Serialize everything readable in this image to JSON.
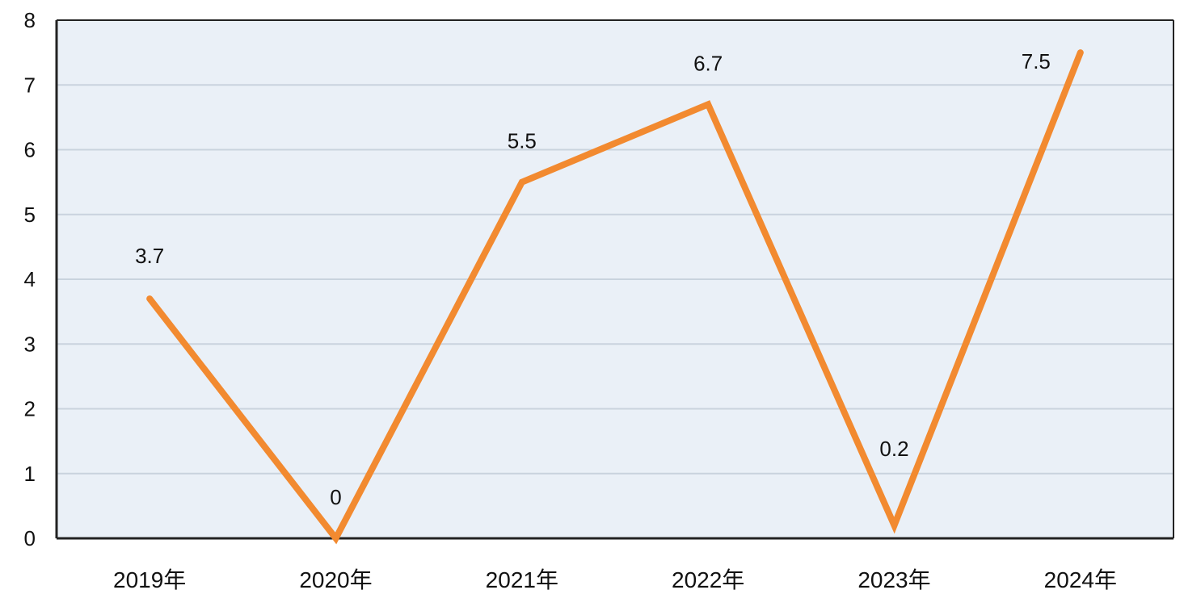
{
  "chart_data": {
    "type": "line",
    "categories": [
      "2019年",
      "2020年",
      "2021年",
      "2022年",
      "2023年",
      "2024年"
    ],
    "series": [
      {
        "values": [
          3.7,
          0,
          5.5,
          6.7,
          0.2,
          7.5
        ]
      }
    ],
    "data_labels": [
      "3.7",
      "0",
      "5.5",
      "6.7",
      "0.2",
      "7.5"
    ],
    "y_ticks": [
      "0",
      "1",
      "2",
      "3",
      "4",
      "5",
      "6",
      "7",
      "8"
    ],
    "ylim": [
      0,
      8
    ],
    "grid": true,
    "legend": "none",
    "colors": {
      "line": "#F28A30",
      "plot_background": "#EAF0F7",
      "grid": "#C9D3DE",
      "axis": "#222222"
    }
  }
}
